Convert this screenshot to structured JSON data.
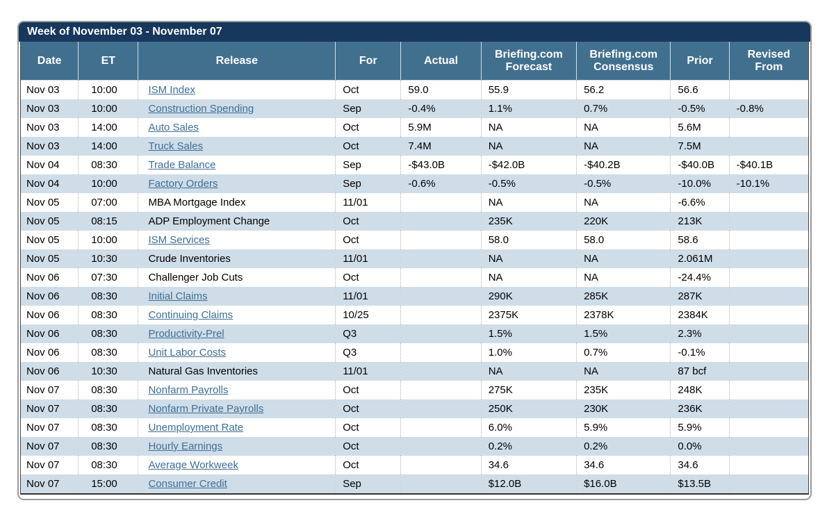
{
  "title": "Week of November 03 - November 07",
  "colors": {
    "title_bar": "#17375c",
    "header_bar": "#41708f",
    "row_alternate": "#cfdde8",
    "link": "#3e6f96",
    "card_border": "#9b9b9b"
  },
  "table": {
    "columns": [
      "Date",
      "ET",
      "Release",
      "For",
      "Actual",
      "Briefing.com\nForecast",
      "Briefing.com\nConsensus",
      "Prior",
      "Revised\nFrom"
    ],
    "rows": [
      {
        "date": "Nov 03",
        "et": "10:00",
        "release": "ISM Index",
        "is_link": true,
        "for": "Oct",
        "actual": "59.0",
        "forecast": "55.9",
        "consensus": "56.2",
        "prior": "56.6",
        "revised_from": ""
      },
      {
        "date": "Nov 03",
        "et": "10:00",
        "release": "Construction Spending",
        "is_link": true,
        "for": "Sep",
        "actual": "-0.4%",
        "forecast": "1.1%",
        "consensus": "0.7%",
        "prior": "-0.5%",
        "revised_from": "-0.8%"
      },
      {
        "date": "Nov 03",
        "et": "14:00",
        "release": "Auto Sales",
        "is_link": true,
        "for": "Oct",
        "actual": "5.9M",
        "forecast": "NA",
        "consensus": "NA",
        "prior": "5.6M",
        "revised_from": ""
      },
      {
        "date": "Nov 03",
        "et": "14:00",
        "release": "Truck Sales",
        "is_link": true,
        "for": "Oct",
        "actual": "7.4M",
        "forecast": "NA",
        "consensus": "NA",
        "prior": "7.5M",
        "revised_from": ""
      },
      {
        "date": "Nov 04",
        "et": "08:30",
        "release": "Trade Balance",
        "is_link": true,
        "for": "Sep",
        "actual": "-$43.0B",
        "forecast": "-$42.0B",
        "consensus": "-$40.2B",
        "prior": "-$40.0B",
        "revised_from": "-$40.1B"
      },
      {
        "date": "Nov 04",
        "et": "10:00",
        "release": "Factory Orders",
        "is_link": true,
        "for": "Sep",
        "actual": "-0.6%",
        "forecast": "-0.5%",
        "consensus": "-0.5%",
        "prior": "-10.0%",
        "revised_from": "-10.1%"
      },
      {
        "date": "Nov 05",
        "et": "07:00",
        "release": "MBA Mortgage Index",
        "is_link": false,
        "for": "11/01",
        "actual": "",
        "forecast": "NA",
        "consensus": "NA",
        "prior": "-6.6%",
        "revised_from": ""
      },
      {
        "date": "Nov 05",
        "et": "08:15",
        "release": "ADP Employment Change",
        "is_link": false,
        "for": "Oct",
        "actual": "",
        "forecast": "235K",
        "consensus": "220K",
        "prior": "213K",
        "revised_from": ""
      },
      {
        "date": "Nov 05",
        "et": "10:00",
        "release": "ISM Services",
        "is_link": true,
        "for": "Oct",
        "actual": "",
        "forecast": "58.0",
        "consensus": "58.0",
        "prior": "58.6",
        "revised_from": ""
      },
      {
        "date": "Nov 05",
        "et": "10:30",
        "release": "Crude Inventories",
        "is_link": false,
        "for": "11/01",
        "actual": "",
        "forecast": "NA",
        "consensus": "NA",
        "prior": "2.061M",
        "revised_from": ""
      },
      {
        "date": "Nov 06",
        "et": "07:30",
        "release": "Challenger Job Cuts",
        "is_link": false,
        "for": "Oct",
        "actual": "",
        "forecast": "NA",
        "consensus": "NA",
        "prior": "-24.4%",
        "revised_from": ""
      },
      {
        "date": "Nov 06",
        "et": "08:30",
        "release": "Initial Claims",
        "is_link": true,
        "for": "11/01",
        "actual": "",
        "forecast": "290K",
        "consensus": "285K",
        "prior": "287K",
        "revised_from": ""
      },
      {
        "date": "Nov 06",
        "et": "08:30",
        "release": "Continuing Claims",
        "is_link": true,
        "for": "10/25",
        "actual": "",
        "forecast": "2375K",
        "consensus": "2378K",
        "prior": "2384K",
        "revised_from": ""
      },
      {
        "date": "Nov 06",
        "et": "08:30",
        "release": "Productivity-Prel",
        "is_link": true,
        "for": "Q3",
        "actual": "",
        "forecast": "1.5%",
        "consensus": "1.5%",
        "prior": "2.3%",
        "revised_from": ""
      },
      {
        "date": "Nov 06",
        "et": "08:30",
        "release": "Unit Labor Costs",
        "is_link": true,
        "for": "Q3",
        "actual": "",
        "forecast": "1.0%",
        "consensus": "0.7%",
        "prior": "-0.1%",
        "revised_from": ""
      },
      {
        "date": "Nov 06",
        "et": "10:30",
        "release": "Natural Gas Inventories",
        "is_link": false,
        "for": "11/01",
        "actual": "",
        "forecast": "NA",
        "consensus": "NA",
        "prior": "87 bcf",
        "revised_from": ""
      },
      {
        "date": "Nov 07",
        "et": "08:30",
        "release": "Nonfarm Payrolls",
        "is_link": true,
        "for": "Oct",
        "actual": "",
        "forecast": "275K",
        "consensus": "235K",
        "prior": "248K",
        "revised_from": ""
      },
      {
        "date": "Nov 07",
        "et": "08:30",
        "release": "Nonfarm Private Payrolls",
        "is_link": true,
        "for": "Oct",
        "actual": "",
        "forecast": "250K",
        "consensus": "230K",
        "prior": "236K",
        "revised_from": ""
      },
      {
        "date": "Nov 07",
        "et": "08:30",
        "release": "Unemployment Rate",
        "is_link": true,
        "for": "Oct",
        "actual": "",
        "forecast": "6.0%",
        "consensus": "5.9%",
        "prior": "5.9%",
        "revised_from": ""
      },
      {
        "date": "Nov 07",
        "et": "08:30",
        "release": "Hourly Earnings",
        "is_link": true,
        "for": "Oct",
        "actual": "",
        "forecast": "0.2%",
        "consensus": "0.2%",
        "prior": "0.0%",
        "revised_from": ""
      },
      {
        "date": "Nov 07",
        "et": "08:30",
        "release": "Average Workweek",
        "is_link": true,
        "for": "Oct",
        "actual": "",
        "forecast": "34.6",
        "consensus": "34.6",
        "prior": "34.6",
        "revised_from": ""
      },
      {
        "date": "Nov 07",
        "et": "15:00",
        "release": "Consumer Credit",
        "is_link": true,
        "for": "Sep",
        "actual": "",
        "forecast": "$12.0B",
        "consensus": "$16.0B",
        "prior": "$13.5B",
        "revised_from": ""
      }
    ]
  }
}
